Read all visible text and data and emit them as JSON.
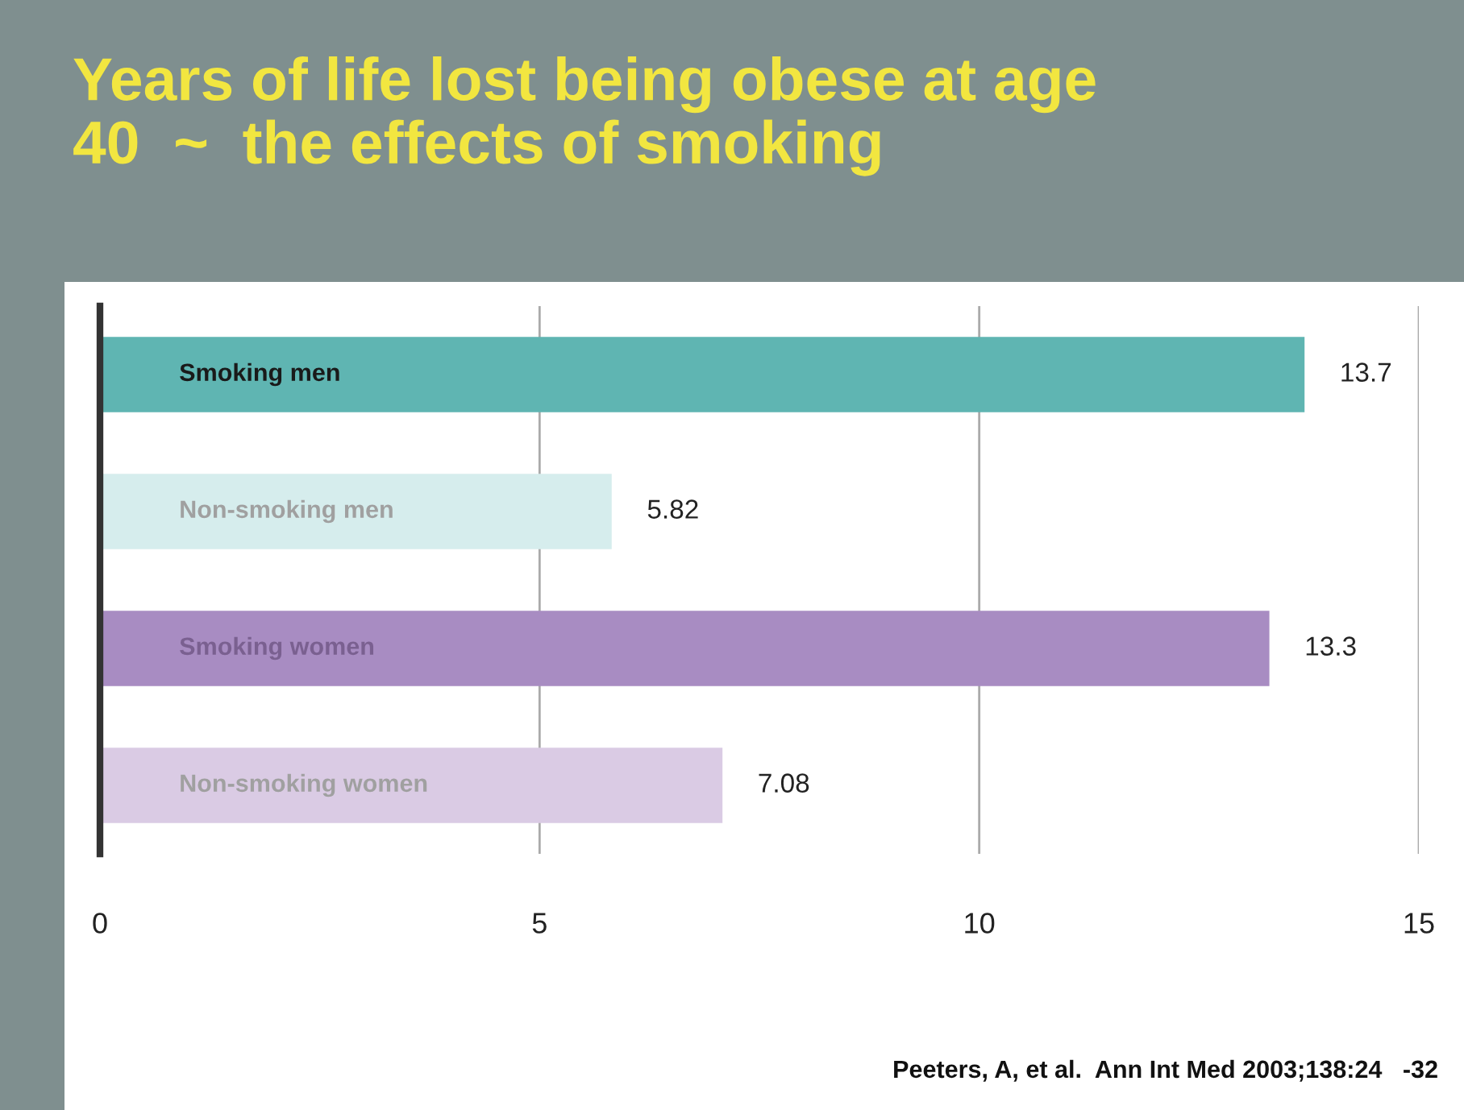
{
  "chart_data": {
    "type": "bar",
    "orientation": "horizontal",
    "title": "Years of life lost being obese at age\n40  ~  the effects of smoking",
    "categories": [
      "Smoking men",
      "Non-smoking men",
      "Smoking women",
      "Non-smoking women"
    ],
    "values": [
      13.7,
      5.82,
      13.3,
      7.08
    ],
    "colors": [
      "#5fb5b2",
      "#d6eded",
      "#a88cc2",
      "#dacbe4"
    ],
    "xlim": [
      0,
      15
    ],
    "xticks": [
      0,
      5,
      10,
      15
    ],
    "grid": "x",
    "data_labels": true,
    "annotations": [
      "Peeters, A, et al.  Ann Int Med 2003;138:24   -32"
    ]
  }
}
